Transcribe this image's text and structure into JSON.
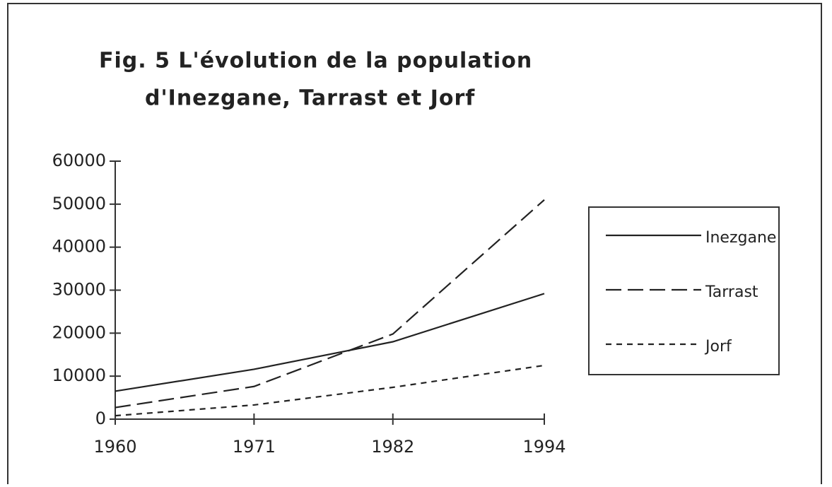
{
  "chart_data": {
    "type": "line",
    "title": [
      "Fig. 5  L'évolution de la population",
      "d'Inezgane, Tarrast et Jorf"
    ],
    "x": [
      1960,
      1971,
      1982,
      1994
    ],
    "xlim": [
      1960,
      1994
    ],
    "xticks": [
      1960,
      1971,
      1982,
      1994
    ],
    "ylim": [
      0,
      60000
    ],
    "yticks": [
      0,
      10000,
      20000,
      30000,
      40000,
      50000,
      60000
    ],
    "grid": false,
    "legend": "right",
    "series": [
      {
        "name": "Inezgane",
        "color": "#222222",
        "dash": "solid",
        "values": [
          6500,
          11600,
          18000,
          29200
        ]
      },
      {
        "name": "Tarrast",
        "color": "#222222",
        "dash": "dashed",
        "values": [
          2700,
          7600,
          19800,
          51000
        ]
      },
      {
        "name": "Jorf",
        "color": "#222222",
        "dash": "dotted",
        "values": [
          800,
          3300,
          7400,
          12500
        ]
      }
    ]
  }
}
